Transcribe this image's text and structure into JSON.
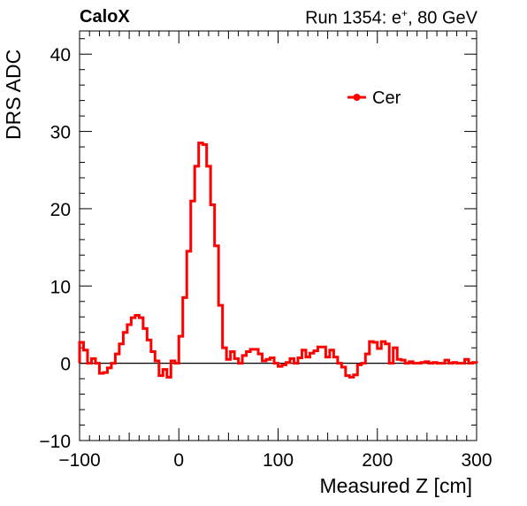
{
  "title_left": "CaloX",
  "title_right_prefix": "Run 1354: e",
  "title_right_sup": "+",
  "title_right_suffix": ", 80 GeV",
  "chart_data": {
    "type": "line",
    "style": "step",
    "xlabel": "Measured Z [cm]",
    "ylabel": "DRS ADC",
    "xlim": [
      -100,
      300
    ],
    "ylim": [
      -10,
      43
    ],
    "xticks": [
      -100,
      0,
      100,
      200,
      300
    ],
    "yticks": [
      -10,
      0,
      10,
      20,
      30,
      40
    ],
    "legend_position": "top-right",
    "series": [
      {
        "name": "Cer",
        "color": "#ff0000",
        "bin_width": 4,
        "x": [
          -98,
          -94,
          -90,
          -86,
          -82,
          -78,
          -74,
          -70,
          -66,
          -62,
          -58,
          -54,
          -50,
          -46,
          -42,
          -38,
          -34,
          -30,
          -26,
          -22,
          -18,
          -14,
          -10,
          -6,
          -2,
          2,
          6,
          10,
          14,
          18,
          22,
          26,
          30,
          34,
          38,
          42,
          46,
          50,
          54,
          58,
          62,
          66,
          70,
          74,
          78,
          82,
          86,
          90,
          94,
          98,
          102,
          106,
          110,
          114,
          118,
          122,
          126,
          130,
          134,
          138,
          142,
          146,
          150,
          154,
          158,
          162,
          166,
          170,
          174,
          178,
          182,
          186,
          190,
          194,
          198,
          202,
          206,
          210,
          214,
          218,
          222,
          226,
          230,
          234,
          238,
          242,
          246,
          250,
          254,
          258,
          262,
          266,
          270,
          274,
          278,
          282,
          286,
          290,
          294,
          298
        ],
        "values": [
          2.7,
          1.7,
          0.0,
          0.6,
          0.0,
          -1.3,
          -1.2,
          -0.6,
          0.0,
          1.2,
          2.5,
          4.0,
          5.0,
          5.9,
          6.2,
          5.9,
          4.5,
          3.0,
          1.5,
          0.3,
          -1.6,
          -0.8,
          -1.8,
          0.3,
          0.0,
          3.5,
          8.5,
          14.5,
          21.0,
          25.5,
          28.5,
          28.3,
          25.5,
          20.5,
          15.2,
          7.5,
          2.0,
          0.5,
          1.5,
          0.6,
          0.0,
          1.0,
          1.5,
          1.8,
          1.8,
          1.2,
          0.3,
          0.5,
          0.7,
          0.0,
          -0.4,
          -0.2,
          0.1,
          0.6,
          0.0,
          0.7,
          1.7,
          0.8,
          1.3,
          1.6,
          2.1,
          2.1,
          0.8,
          1.7,
          0.8,
          0.0,
          -0.5,
          -1.6,
          -1.8,
          -1.5,
          -0.2,
          0.0,
          1.2,
          2.8,
          2.7,
          1.9,
          2.8,
          2.5,
          0.0,
          2.0,
          0.5,
          0.4,
          0.0,
          0.2,
          0.0,
          0.0,
          0.1,
          0.2,
          0.0,
          0.1,
          0.0,
          0.0,
          0.4,
          0.0,
          0.1,
          0.0,
          0.0,
          0.5,
          0.0,
          0.1
        ]
      }
    ]
  }
}
